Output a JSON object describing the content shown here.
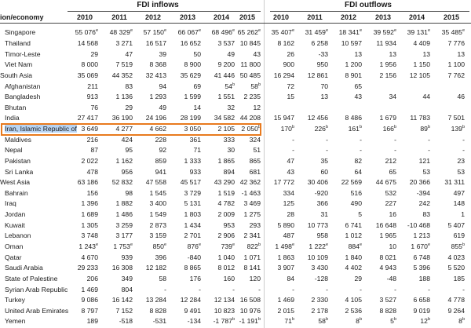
{
  "header": {
    "economy_label": "ion/economy",
    "inflows_label": "FDI inflows",
    "outflows_label": "FDI outflows",
    "years": [
      "2010",
      "2011",
      "2012",
      "2013",
      "2014",
      "2015"
    ]
  },
  "rows": [
    {
      "name": "Singapore",
      "sub": true,
      "in": [
        "55 076",
        "48 329",
        "57 150",
        "66 067",
        "68 496",
        "65 262"
      ],
      "in_sup": [
        "e",
        "e",
        "e",
        "e",
        "e",
        "e"
      ],
      "out": [
        "35 407",
        "31 459",
        "18 341",
        "39 592",
        "39 131",
        "35 485"
      ],
      "out_sup": [
        "e",
        "e",
        "e",
        "e",
        "e",
        "e"
      ]
    },
    {
      "name": "Thailand",
      "sub": true,
      "in": [
        "14 568",
        "3 271",
        "16 517",
        "16 652",
        "3 537",
        "10 845"
      ],
      "out": [
        "8 162",
        "6 258",
        "10 597",
        "11 934",
        "4 409",
        "7 776"
      ]
    },
    {
      "name": "Timor-Leste",
      "sub": true,
      "in": [
        "29",
        "47",
        "39",
        "50",
        "49",
        "43"
      ],
      "out": [
        "26",
        "-33",
        "13",
        "13",
        "13",
        "13"
      ]
    },
    {
      "name": "Viet Nam",
      "sub": true,
      "in": [
        "8 000",
        "7 519",
        "8 368",
        "8 900",
        "9 200",
        "11 800"
      ],
      "out": [
        "900",
        "950",
        "1 200",
        "1 956",
        "1 150",
        "1 100"
      ]
    },
    {
      "name": "South Asia",
      "sub": false,
      "in": [
        "35 069",
        "44 352",
        "32 413",
        "35 629",
        "41 446",
        "50 485"
      ],
      "out": [
        "16 294",
        "12 861",
        "8 901",
        "2 156",
        "12 105",
        "7 762"
      ]
    },
    {
      "name": "Afghanistan",
      "sub": true,
      "in": [
        "211",
        "83",
        "94",
        "69",
        "54",
        "58"
      ],
      "in_sup": [
        "",
        "",
        "",
        "",
        "b",
        "b"
      ],
      "out": [
        "72",
        "70",
        "65",
        "",
        "",
        ""
      ]
    },
    {
      "name": "Bangladesh",
      "sub": true,
      "in": [
        "913",
        "1 136",
        "1 293",
        "1 599",
        "1 551",
        "2 235"
      ],
      "out": [
        "15",
        "13",
        "43",
        "34",
        "44",
        "46"
      ]
    },
    {
      "name": "Bhutan",
      "sub": true,
      "in": [
        "76",
        "29",
        "49",
        "14",
        "32",
        "12"
      ],
      "out": [
        "",
        "",
        "",
        "",
        "",
        ""
      ]
    },
    {
      "name": "India",
      "sub": true,
      "in": [
        "27 417",
        "36 190",
        "24 196",
        "28 199",
        "34 582",
        "44 208"
      ],
      "out": [
        "15 947",
        "12 456",
        "8 486",
        "1 679",
        "11 783",
        "7 501"
      ]
    },
    {
      "name": "Iran, Islamic Republic of",
      "sub": true,
      "iran": true,
      "in": [
        "3 649",
        "4 277",
        "4 662",
        "3 050",
        "2 105",
        "2 050"
      ],
      "in_sup": [
        "",
        "",
        "",
        "",
        "",
        "b"
      ],
      "out": [
        "170",
        "226",
        "161",
        "166",
        "89",
        "139"
      ],
      "out_sup": [
        "b",
        "b",
        "b",
        "b",
        "b",
        "b"
      ]
    },
    {
      "name": "Maldives",
      "sub": true,
      "in": [
        "216",
        "424",
        "228",
        "361",
        "333",
        "324"
      ],
      "out": [
        "-",
        "-",
        "-",
        "-",
        "-",
        "-"
      ]
    },
    {
      "name": "Nepal",
      "sub": true,
      "in": [
        "87",
        "95",
        "92",
        "71",
        "30",
        "51"
      ],
      "out": [
        "-",
        "-",
        "-",
        "-",
        "-",
        "-"
      ]
    },
    {
      "name": "Pakistan",
      "sub": true,
      "in": [
        "2 022",
        "1 162",
        "859",
        "1 333",
        "1 865",
        "865"
      ],
      "out": [
        "47",
        "35",
        "82",
        "212",
        "121",
        "23"
      ]
    },
    {
      "name": "Sri Lanka",
      "sub": true,
      "in": [
        "478",
        "956",
        "941",
        "933",
        "894",
        "681"
      ],
      "out": [
        "43",
        "60",
        "64",
        "65",
        "53",
        "53"
      ]
    },
    {
      "name": "West Asia",
      "sub": false,
      "in": [
        "63 186",
        "52 832",
        "47 558",
        "45 517",
        "43 290",
        "42 362"
      ],
      "out": [
        "17 772",
        "30 406",
        "22 569",
        "44 675",
        "20 366",
        "31 311"
      ]
    },
    {
      "name": "Bahrain",
      "sub": true,
      "in": [
        "156",
        "98",
        "1 545",
        "3 729",
        "1 519",
        "-1 463"
      ],
      "out": [
        "334",
        "-920",
        "516",
        "532",
        "-394",
        "497"
      ]
    },
    {
      "name": "Iraq",
      "sub": true,
      "in": [
        "1 396",
        "1 882",
        "3 400",
        "5 131",
        "4 782",
        "3 469"
      ],
      "out": [
        "125",
        "366",
        "490",
        "227",
        "242",
        "148"
      ]
    },
    {
      "name": "Jordan",
      "sub": true,
      "in": [
        "1 689",
        "1 486",
        "1 549",
        "1 803",
        "2 009",
        "1 275"
      ],
      "out": [
        "28",
        "31",
        "5",
        "16",
        "83",
        "1"
      ]
    },
    {
      "name": "Kuwait",
      "sub": true,
      "in": [
        "1 305",
        "3 259",
        "2 873",
        "1 434",
        "953",
        "293"
      ],
      "out": [
        "5 890",
        "10 773",
        "6 741",
        "16 648",
        "-10 468",
        "5 407"
      ]
    },
    {
      "name": "Lebanon",
      "sub": true,
      "in": [
        "3 748",
        "3 177",
        "3 159",
        "2 701",
        "2 906",
        "2 341"
      ],
      "out": [
        "487",
        "958",
        "1 012",
        "1 965",
        "1 213",
        "619"
      ]
    },
    {
      "name": "Oman",
      "sub": true,
      "in": [
        "1 243",
        "1 753",
        "850",
        "876",
        "739",
        "822"
      ],
      "in_sup": [
        "e",
        "e",
        "e",
        "e",
        "e",
        "b"
      ],
      "out": [
        "1 498",
        "1 222",
        "884",
        "10",
        "1 670",
        "855"
      ],
      "out_sup": [
        "e",
        "e",
        "e",
        "",
        "e",
        "b"
      ]
    },
    {
      "name": "Qatar",
      "sub": true,
      "in": [
        "4 670",
        "939",
        "396",
        "-840",
        "1 040",
        "1 071"
      ],
      "out": [
        "1 863",
        "10 109",
        "1 840",
        "8 021",
        "6 748",
        "4 023"
      ]
    },
    {
      "name": "Saudi Arabia",
      "sub": true,
      "in": [
        "29 233",
        "16 308",
        "12 182",
        "8 865",
        "8 012",
        "8 141"
      ],
      "out": [
        "3 907",
        "3 430",
        "4 402",
        "4 943",
        "5 396",
        "5 520"
      ]
    },
    {
      "name": "State of Palestine",
      "sub": true,
      "in": [
        "206",
        "349",
        "58",
        "176",
        "160",
        "120"
      ],
      "out": [
        "84",
        "-128",
        "29",
        "-48",
        "188",
        "185"
      ]
    },
    {
      "name": "Syrian Arab Republic",
      "sub": true,
      "in": [
        "1 469",
        "804",
        "-",
        "-",
        "-",
        "-"
      ],
      "out": [
        "-",
        "-",
        "-",
        "-",
        "-",
        "-"
      ]
    },
    {
      "name": "Turkey",
      "sub": true,
      "in": [
        "9 086",
        "16 142",
        "13 284",
        "12 284",
        "12 134",
        "16 508"
      ],
      "out": [
        "1 469",
        "2 330",
        "4 105",
        "3 527",
        "6 658",
        "4 778"
      ]
    },
    {
      "name": "United Arab Emirates",
      "sub": true,
      "in": [
        "8 797",
        "7 152",
        "8 828",
        "9 491",
        "10 823",
        "10 976"
      ],
      "out": [
        "2 015",
        "2 178",
        "2 536",
        "8 828",
        "9 019",
        "9 264"
      ]
    },
    {
      "name": "Yemen",
      "sub": true,
      "in": [
        "189",
        "-518",
        "-531",
        "-134",
        "-1 787",
        "-1 191"
      ],
      "in_sup": [
        "",
        "",
        "",
        "",
        "b",
        "b"
      ],
      "out": [
        "71",
        "58",
        "8",
        "5",
        "12",
        "8"
      ],
      "out_sup": [
        "b",
        "b",
        "b",
        "b",
        "b",
        "b"
      ]
    }
  ]
}
